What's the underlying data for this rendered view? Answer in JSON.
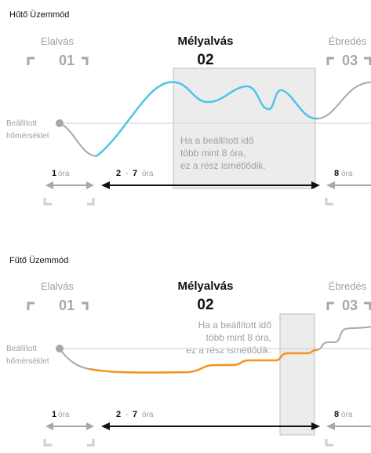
{
  "colors": {
    "cool_curve": "#4cc4ea",
    "heat_curve": "#f3921d",
    "gray_curve": "#a8a8a8",
    "label_gray": "#a0a0a0",
    "dark": "#111111",
    "box_fill": "#ececec",
    "box_stroke": "#bdbdbd",
    "line_gray": "#cfcfcf"
  },
  "panels": [
    {
      "mode_title": "Hűtő Üzemmód",
      "phase_left": "Elalvás",
      "phase_left_num": "01",
      "phase_mid": "Mélyalvás",
      "phase_mid_num": "02",
      "phase_right": "Ébredés",
      "phase_right_num": "03",
      "setpoint_line1": "Beállított",
      "setpoint_line2": "hőmérséklet",
      "note_lines": [
        "Ha a beállított idő",
        "több mint 8 óra,",
        "ez a rész ismétlődik."
      ],
      "dur_left_num": "1",
      "dur_left_unit": "óra",
      "dur_mid_num1": "2",
      "dur_mid_sep": "-",
      "dur_mid_num2": "7",
      "dur_mid_unit": "óra",
      "dur_right_num": "8",
      "dur_right_unit": "óra"
    },
    {
      "mode_title": "Fűtő Üzemmód",
      "phase_left": "Elalvás",
      "phase_left_num": "01",
      "phase_mid": "Mélyalvás",
      "phase_mid_num": "02",
      "phase_right": "Ébredés",
      "phase_right_num": "03",
      "setpoint_line1": "Beállított",
      "setpoint_line2": "hőmérséklet",
      "note_lines": [
        "Ha a beállított idő",
        "több mint 8 óra,",
        "ez a rész ismétlődik."
      ],
      "dur_left_num": "1",
      "dur_left_unit": "óra",
      "dur_mid_num1": "2",
      "dur_mid_sep": "-",
      "dur_mid_num2": "7",
      "dur_mid_unit": "óra",
      "dur_right_num": "8",
      "dur_right_unit": "óra"
    }
  ]
}
